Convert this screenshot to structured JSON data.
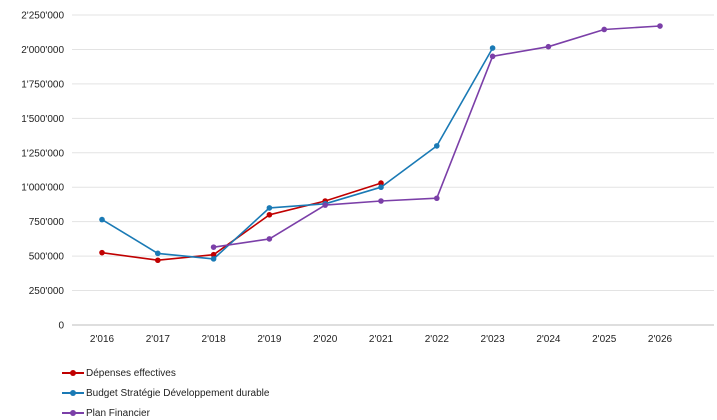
{
  "chart_data": {
    "type": "line",
    "x": [
      "2'016",
      "2'017",
      "2'018",
      "2'019",
      "2'020",
      "2'021",
      "2'022",
      "2'023",
      "2'024",
      "2'025",
      "2'026"
    ],
    "yticks": [
      "0",
      "250'000",
      "500'000",
      "750'000",
      "1'000'000",
      "1'250'000",
      "1'500'000",
      "1'750'000",
      "2'000'000",
      "2'250'000"
    ],
    "ylim": [
      0,
      2250000
    ],
    "grid": true,
    "legend_position": "bottom-left",
    "series": [
      {
        "name": "Dépenses effectives",
        "color": "#c00000",
        "values": [
          525000,
          470000,
          510000,
          800000,
          900000,
          1030000,
          null,
          null,
          null,
          null,
          null
        ]
      },
      {
        "name": "Budget Stratégie Développement durable",
        "color": "#1a7ab5",
        "values": [
          765000,
          520000,
          480000,
          850000,
          880000,
          1000000,
          1300000,
          2010000,
          null,
          null,
          null
        ]
      },
      {
        "name": "Plan Financier",
        "color": "#7b3fa8",
        "values": [
          null,
          null,
          565000,
          625000,
          870000,
          900000,
          920000,
          1950000,
          2020000,
          2145000,
          2170000
        ]
      }
    ]
  }
}
